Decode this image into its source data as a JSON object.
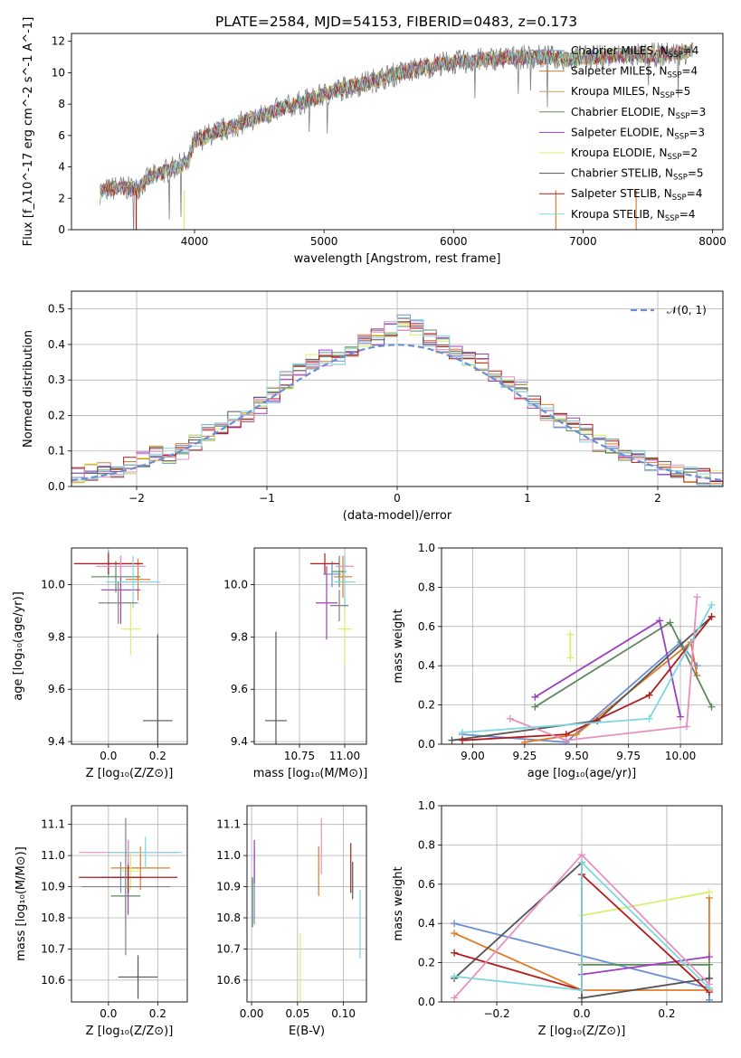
{
  "title": "PLATE=2584, MJD=54153, FIBERID=0483, z=0.173",
  "colors": [
    "#6a8fd6",
    "#e07b2a",
    "#5c8a5c",
    "#9b3fbf",
    "#d7ef6a",
    "#555555",
    "#b31a1a",
    "#e88fc0",
    "#7fd6e0",
    "#808080"
  ],
  "chart_data": [
    {
      "id": "spectrum",
      "type": "line",
      "xlabel": "wavelength [Angstrom, rest frame]",
      "ylabel": "Flux [f_λ10^-17 erg cm^-2 s^-1 A^-1]",
      "xlim": [
        3050,
        8080
      ],
      "ylim": [
        0,
        12.5
      ],
      "xticks": [
        4000,
        5000,
        6000,
        7000,
        8000
      ],
      "yticks": [
        0,
        2,
        4,
        6,
        8,
        10,
        12
      ],
      "legend_position": "right",
      "continuum": {
        "x": [
          3270,
          3400,
          3550,
          3650,
          3800,
          3950,
          4000,
          4100,
          4300,
          4500,
          4700,
          4900,
          5100,
          5300,
          5500,
          5700,
          5900,
          6100,
          6300,
          6500,
          6700,
          6900,
          7100,
          7300,
          7500,
          7700,
          7850
        ],
        "y": [
          2.4,
          2.7,
          2.6,
          3.3,
          3.8,
          4.3,
          5.6,
          6.0,
          6.6,
          7.2,
          7.8,
          8.3,
          8.9,
          9.3,
          9.8,
          10.2,
          10.6,
          10.7,
          10.9,
          11.0,
          11.0,
          10.9,
          11.0,
          11.1,
          11.1,
          11.2,
          11.4
        ]
      },
      "series": [
        {
          "name": "Chabrier MILES, N_SSP=4",
          "label_main": "Chabrier MILES, N",
          "label_sub": "SSP",
          "label_end": "=4",
          "color": "#6a8fd6"
        },
        {
          "name": "Salpeter MILES, N_SSP=4",
          "label_main": "Salpeter MILES, N",
          "label_sub": "SSP",
          "label_end": "=4",
          "color": "#e07b2a"
        },
        {
          "name": "Kroupa MILES, N_SSP=5",
          "label_main": "Kroupa MILES, N",
          "label_sub": "SSP",
          "label_end": "=5",
          "color": "#c9a060"
        },
        {
          "name": "Chabrier ELODIE, N_SSP=3",
          "label_main": "Chabrier ELODIE, N",
          "label_sub": "SSP",
          "label_end": "=3",
          "color": "#5c8a5c"
        },
        {
          "name": "Salpeter ELODIE, N_SSP=3",
          "label_main": "Salpeter ELODIE, N",
          "label_sub": "SSP",
          "label_end": "=3",
          "color": "#9b3fbf"
        },
        {
          "name": "Kroupa ELODIE, N_SSP=2",
          "label_main": "Kroupa ELODIE, N",
          "label_sub": "SSP",
          "label_end": "=2",
          "color": "#d7ef6a"
        },
        {
          "name": "Chabrier STELIB, N_SSP=5",
          "label_main": "Chabrier STELIB, N",
          "label_sub": "SSP",
          "label_end": "=5",
          "color": "#555555"
        },
        {
          "name": "Salpeter STELIB, N_SSP=4",
          "label_main": "Salpeter STELIB, N",
          "label_sub": "SSP",
          "label_end": "=4",
          "color": "#b31a1a"
        },
        {
          "name": "Kroupa STELIB, N_SSP=4",
          "label_main": "Kroupa STELIB, N",
          "label_sub": "SSP",
          "label_end": "=4",
          "color": "#7fd6e0"
        }
      ],
      "data_color": "#808080"
    },
    {
      "id": "residuals",
      "type": "line",
      "xlabel": "(data-model)/error",
      "ylabel": "Normed distribution",
      "xlim": [
        -2.5,
        2.5
      ],
      "ylim": [
        0,
        0.55
      ],
      "xticks": [
        -2,
        -1,
        0,
        1,
        2
      ],
      "yticks": [
        0.0,
        0.1,
        0.2,
        0.3,
        0.4,
        0.5
      ],
      "legend": "𝒩(0, 1)",
      "legend_position": "top-right",
      "hist_bin_width": 0.1,
      "hist_centers": [
        -2.45,
        -2.35,
        -2.25,
        -2.15,
        -2.05,
        -1.95,
        -1.85,
        -1.75,
        -1.65,
        -1.55,
        -1.45,
        -1.35,
        -1.25,
        -1.15,
        -1.05,
        -0.95,
        -0.85,
        -0.75,
        -0.65,
        -0.55,
        -0.45,
        -0.35,
        -0.25,
        -0.15,
        -0.05,
        0.05,
        0.15,
        0.25,
        0.35,
        0.45,
        0.55,
        0.65,
        0.75,
        0.85,
        0.95,
        1.05,
        1.15,
        1.25,
        1.35,
        1.45,
        1.55,
        1.65,
        1.75,
        1.85,
        1.95,
        2.05,
        2.15,
        2.25,
        2.35,
        2.45
      ],
      "hist_values": [
        0.03,
        0.04,
        0.05,
        0.05,
        0.06,
        0.08,
        0.09,
        0.09,
        0.1,
        0.12,
        0.15,
        0.17,
        0.19,
        0.2,
        0.23,
        0.26,
        0.3,
        0.33,
        0.35,
        0.36,
        0.36,
        0.39,
        0.41,
        0.42,
        0.44,
        0.46,
        0.45,
        0.42,
        0.4,
        0.38,
        0.36,
        0.35,
        0.31,
        0.29,
        0.27,
        0.23,
        0.21,
        0.19,
        0.17,
        0.15,
        0.12,
        0.11,
        0.09,
        0.08,
        0.06,
        0.05,
        0.04,
        0.03,
        0.03,
        0.02
      ]
    },
    {
      "id": "age-vs-Z",
      "type": "scatter",
      "xlabel": "Z [log₁₀(Z/Z⊙)]",
      "ylabel": "age  [log₁₀(age/yr)]",
      "xlim": [
        -0.15,
        0.32
      ],
      "ylim": [
        9.39,
        10.14
      ],
      "xticks": [
        0.0,
        0.2
      ],
      "yticks": [
        9.4,
        9.6,
        9.8,
        10.0
      ],
      "points": [
        {
          "x": 0.0,
          "y": 10.08,
          "xerr": 0.13,
          "yerr": 0.05
        },
        {
          "x": 0.12,
          "y": 10.02,
          "xerr": 0.05,
          "yerr": 0.08
        },
        {
          "x": 0.03,
          "y": 10.03,
          "xerr": 0.1,
          "yerr": 0.06
        },
        {
          "x": 0.05,
          "y": 9.98,
          "xerr": 0.08,
          "yerr": 0.13
        },
        {
          "x": 0.09,
          "y": 9.83,
          "xerr": 0.04,
          "yerr": 0.1
        },
        {
          "x": 0.2,
          "y": 9.48,
          "xerr": 0.06,
          "yerr": 0.33
        },
        {
          "x": 0.0,
          "y": 10.08,
          "xerr": 0.14,
          "yerr": 0.04
        },
        {
          "x": 0.05,
          "y": 10.07,
          "xerr": 0.1,
          "yerr": 0.04
        },
        {
          "x": 0.1,
          "y": 10.01,
          "xerr": 0.11,
          "yerr": 0.1
        },
        {
          "x": 0.04,
          "y": 9.93,
          "xerr": 0.08,
          "yerr": 0.08
        }
      ]
    },
    {
      "id": "age-vs-mass",
      "type": "scatter",
      "xlabel": "mass [log₁₀(M/M⊙)]",
      "ylabel": "",
      "xlim": [
        10.5,
        11.12
      ],
      "ylim": [
        9.39,
        10.14
      ],
      "xticks": [
        10.75,
        11.0
      ],
      "yticks": [
        9.4,
        9.6,
        9.8,
        10.0
      ],
      "points": [
        {
          "x": 10.93,
          "y": 10.04,
          "xerr": 0.05,
          "yerr": 0.05
        },
        {
          "x": 10.99,
          "y": 10.03,
          "xerr": 0.05,
          "yerr": 0.08
        },
        {
          "x": 10.97,
          "y": 10.05,
          "xerr": 0.04,
          "yerr": 0.06
        },
        {
          "x": 10.9,
          "y": 9.93,
          "xerr": 0.06,
          "yerr": 0.14
        },
        {
          "x": 11.0,
          "y": 9.83,
          "xerr": 0.04,
          "yerr": 0.13
        },
        {
          "x": 10.62,
          "y": 9.48,
          "xerr": 0.06,
          "yerr": 0.34
        },
        {
          "x": 10.89,
          "y": 10.08,
          "xerr": 0.08,
          "yerr": 0.04
        },
        {
          "x": 11.0,
          "y": 10.07,
          "xerr": 0.05,
          "yerr": 0.04
        },
        {
          "x": 11.0,
          "y": 10.01,
          "xerr": 0.06,
          "yerr": 0.1
        },
        {
          "x": 10.97,
          "y": 9.92,
          "xerr": 0.05,
          "yerr": 0.06
        }
      ]
    },
    {
      "id": "weight-vs-age",
      "type": "line",
      "xlabel": "age  [log₁₀(age/yr)]",
      "ylabel": "mass weight",
      "xlim": [
        8.85,
        10.2
      ],
      "ylim": [
        0,
        1.0
      ],
      "xticks": [
        9.0,
        9.25,
        9.5,
        9.75,
        10.0
      ],
      "yticks": [
        0.0,
        0.2,
        0.4,
        0.6,
        0.8,
        1.0
      ],
      "series": [
        {
          "x": [
            8.95,
            9.45,
            10.0,
            10.08
          ],
          "y": [
            0.05,
            0.01,
            0.52,
            0.4
          ]
        },
        {
          "x": [
            9.25,
            9.5,
            10.05,
            10.08
          ],
          "y": [
            0.01,
            0.05,
            0.52,
            0.35
          ]
        },
        {
          "x": [
            9.3,
            9.95,
            10.15
          ],
          "y": [
            0.19,
            0.62,
            0.19
          ]
        },
        {
          "x": [
            9.3,
            9.9,
            10.0
          ],
          "y": [
            0.24,
            0.63,
            0.14
          ]
        },
        {
          "x": [
            9.47,
            9.47
          ],
          "y": [
            0.44,
            0.56
          ]
        },
        {
          "x": [
            8.9,
            9.6,
            10.15
          ],
          "y": [
            0.02,
            0.12,
            0.65
          ]
        },
        {
          "x": [
            8.95,
            9.45,
            9.85,
            10.15
          ],
          "y": [
            0.02,
            0.05,
            0.25,
            0.65
          ]
        },
        {
          "x": [
            9.18,
            9.45,
            10.03,
            10.08
          ],
          "y": [
            0.13,
            0.02,
            0.09,
            0.75
          ]
        },
        {
          "x": [
            8.95,
            9.85,
            10.15
          ],
          "y": [
            0.06,
            0.13,
            0.71
          ]
        }
      ]
    },
    {
      "id": "mass-vs-Z",
      "type": "scatter",
      "xlabel": "Z [log₁₀(Z/Z⊙)]",
      "ylabel": "mass [log₁₀(M/M⊙)]",
      "xlim": [
        -0.15,
        0.32
      ],
      "ylim": [
        10.53,
        11.16
      ],
      "xticks": [
        0.0,
        0.2
      ],
      "yticks": [
        10.6,
        10.7,
        10.8,
        10.9,
        11.0,
        11.1
      ],
      "points": [
        {
          "x": 0.05,
          "y": 10.93,
          "xerr": 0.08,
          "yerr": 0.05
        },
        {
          "x": 0.13,
          "y": 10.96,
          "xerr": 0.12,
          "yerr": 0.07
        },
        {
          "x": 0.07,
          "y": 10.87,
          "xerr": 0.06,
          "yerr": 0.09
        },
        {
          "x": 0.08,
          "y": 10.93,
          "xerr": 0.06,
          "yerr": 0.12
        },
        {
          "x": 0.09,
          "y": 10.95,
          "xerr": 0.04,
          "yerr": 0.06
        },
        {
          "x": 0.12,
          "y": 10.61,
          "xerr": 0.08,
          "yerr": 0.07
        },
        {
          "x": 0.08,
          "y": 10.93,
          "xerr": 0.2,
          "yerr": 0.05
        },
        {
          "x": 0.08,
          "y": 11.01,
          "xerr": 0.2,
          "yerr": 0.04
        },
        {
          "x": 0.15,
          "y": 11.01,
          "xerr": 0.15,
          "yerr": 0.05
        },
        {
          "x": 0.07,
          "y": 10.9,
          "xerr": 0.18,
          "yerr": 0.22
        }
      ]
    },
    {
      "id": "mass-vs-EBV",
      "type": "scatter",
      "xlabel": "E(B-V)",
      "ylabel": "",
      "xlim": [
        -0.005,
        0.125
      ],
      "ylim": [
        10.53,
        11.16
      ],
      "xticks": [
        0.0,
        0.05,
        0.1
      ],
      "yticks": [
        10.6,
        10.7,
        10.8,
        10.9,
        11.0,
        11.1
      ],
      "points": [
        {
          "x": 0.003,
          "y": 10.9,
          "xerr": 0.0,
          "yerr": 0.12
        },
        {
          "x": 0.073,
          "y": 10.95,
          "xerr": 0.0,
          "yerr": 0.08
        },
        {
          "x": 0.001,
          "y": 10.85,
          "xerr": 0.0,
          "yerr": 0.08
        },
        {
          "x": 0.003,
          "y": 10.98,
          "xerr": 0.0,
          "yerr": 0.07
        },
        {
          "x": 0.053,
          "y": 10.64,
          "xerr": 0.0,
          "yerr": 0.11
        },
        {
          "x": 0.11,
          "y": 10.92,
          "xerr": 0.0,
          "yerr": 0.06
        },
        {
          "x": 0.108,
          "y": 10.96,
          "xerr": 0.0,
          "yerr": 0.08
        },
        {
          "x": 0.076,
          "y": 11.03,
          "xerr": 0.0,
          "yerr": 0.09
        },
        {
          "x": 0.118,
          "y": 10.78,
          "xerr": 0.0,
          "yerr": 0.11
        }
      ]
    },
    {
      "id": "weight-vs-Z",
      "type": "line",
      "xlabel": "Z [log₁₀(Z/Z⊙)]",
      "ylabel": "mass weight",
      "xlim": [
        -0.33,
        0.33
      ],
      "ylim": [
        0,
        1.0
      ],
      "xticks": [
        -0.2,
        0.0,
        0.2
      ],
      "yticks": [
        0.0,
        0.2,
        0.4,
        0.6,
        0.8,
        1.0
      ],
      "series": [
        {
          "x": [
            -0.3,
            0.3,
            0.3
          ],
          "y": [
            0.4,
            0.07,
            0.01
          ]
        },
        {
          "x": [
            -0.3,
            0.0,
            0.3,
            0.3
          ],
          "y": [
            0.35,
            0.06,
            0.06,
            0.53
          ]
        },
        {
          "x": [
            0.0,
            0.3,
            0.3
          ],
          "y": [
            0.19,
            0.19,
            0.12
          ]
        },
        {
          "x": [
            0.0,
            0.3
          ],
          "y": [
            0.14,
            0.23
          ]
        },
        {
          "x": [
            0.0,
            0.3
          ],
          "y": [
            0.44,
            0.56
          ]
        },
        {
          "x": [
            -0.3,
            0.0,
            0.0,
            0.3
          ],
          "y": [
            0.12,
            0.71,
            0.02,
            0.12
          ]
        },
        {
          "x": [
            -0.3,
            0.0,
            0.0,
            0.3
          ],
          "y": [
            0.25,
            0.06,
            0.65,
            0.05
          ]
        },
        {
          "x": [
            -0.3,
            0.0,
            0.3
          ],
          "y": [
            0.02,
            0.75,
            0.09
          ]
        },
        {
          "x": [
            -0.3,
            0.0,
            0.0,
            0.3
          ],
          "y": [
            0.13,
            0.06,
            0.71,
            0.07
          ]
        }
      ]
    }
  ]
}
